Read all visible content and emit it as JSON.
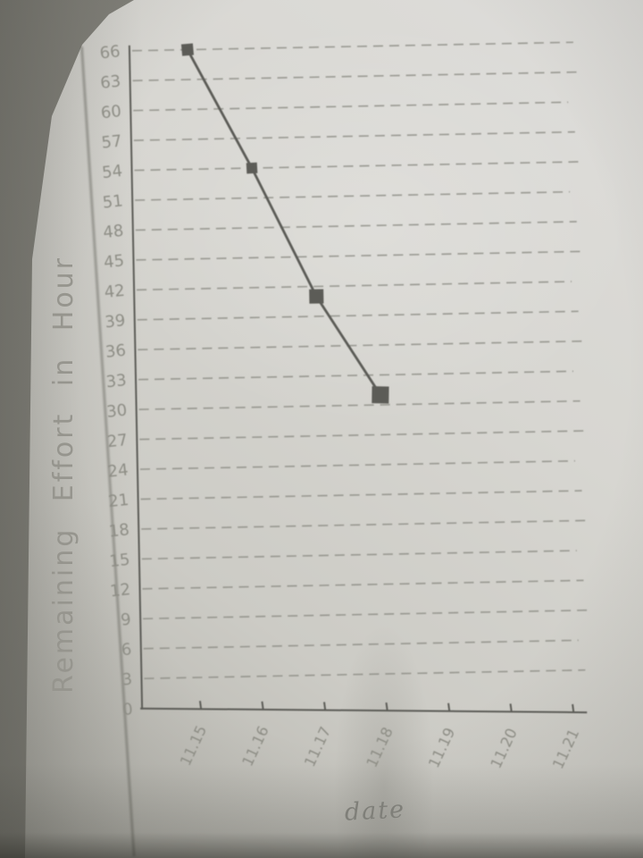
{
  "scene": {
    "description_visible": false
  },
  "colors": {
    "surface": "#82817a",
    "paper": "#d6d5d0",
    "ink": "#5c5c57",
    "pencil": "#8e8e86",
    "bottom_shadow": "#6e6d65"
  },
  "chart_data": {
    "type": "line",
    "title": "",
    "xlabel": "date",
    "ylabel": "Remaining Effort in Hour",
    "categories": [
      "11.15",
      "11.16",
      "11.17",
      "11.18",
      "11.19",
      "11.20",
      "11.21"
    ],
    "y_ticks": [
      0,
      3,
      6,
      9,
      12,
      15,
      18,
      21,
      24,
      27,
      30,
      33,
      36,
      39,
      42,
      45,
      48,
      51,
      54,
      57,
      60,
      63,
      66
    ],
    "ylim": [
      0,
      66
    ],
    "grid": "dashed-horizontal",
    "legend": "none",
    "marker": "filled-square",
    "line_style": "solid",
    "ink_color": "#5c5c57",
    "pencil_color": "#8e8e86",
    "series": [
      {
        "name": "remaining-effort",
        "x": [
          "11.15",
          "11.16",
          "11.17",
          "11.18"
        ],
        "values": [
          66,
          54,
          41,
          31
        ]
      }
    ]
  }
}
